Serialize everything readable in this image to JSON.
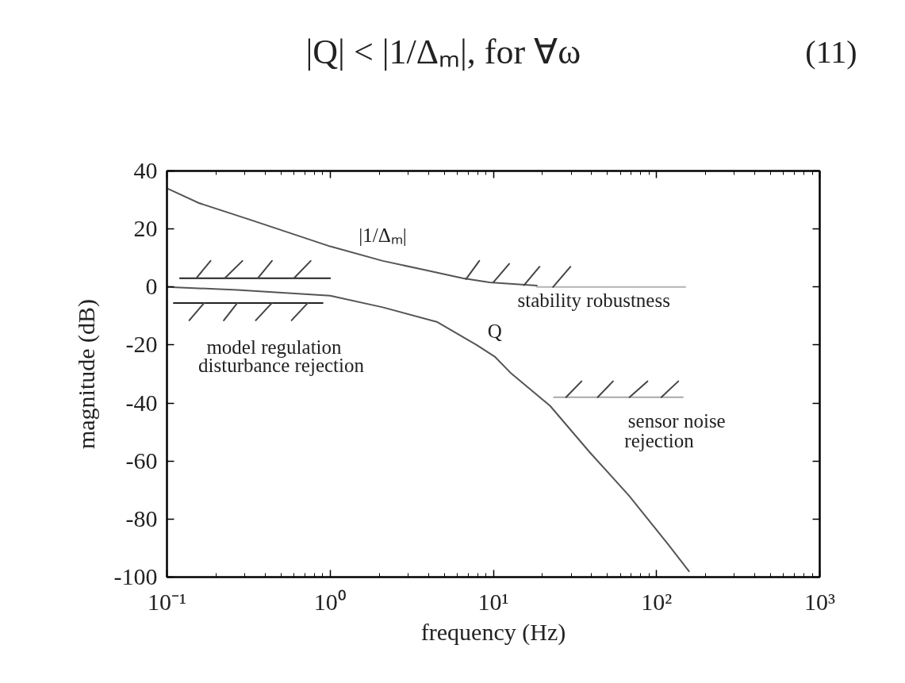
{
  "chart_data": {
    "type": "line",
    "title": "|Q| < |1/Δₘ|,   for ∀ω",
    "xlabel": "frequency (Hz)",
    "ylabel": "magnitude (dB)",
    "log": "x",
    "xlim": [
      0.1,
      1000
    ],
    "ylim": [
      -100,
      40
    ],
    "xticks": [
      {
        "value": 0.1,
        "label": "10⁻¹"
      },
      {
        "value": 1,
        "label": "10⁰"
      },
      {
        "value": 10,
        "label": "10¹"
      },
      {
        "value": 100,
        "label": "10²"
      },
      {
        "value": 1000,
        "label": "10³"
      }
    ],
    "yticks": [
      -100,
      -80,
      -60,
      -40,
      -20,
      0,
      20,
      40
    ],
    "series": [
      {
        "name": "|1/Δₘ|",
        "color": "#555555",
        "x": [
          0.1,
          0.156,
          0.33,
          1,
          2.1,
          3.7,
          6.5,
          9.5,
          18.5
        ],
        "values": [
          34,
          29,
          23,
          14,
          9,
          6,
          3,
          1.6,
          0.5
        ]
      },
      {
        "name": "Q",
        "color": "#555555",
        "x": [
          0.1,
          0.27,
          1,
          2.1,
          4.5,
          7.9,
          10.2,
          12.7,
          22.3,
          39,
          68,
          119,
          158
        ],
        "values": [
          0,
          -1,
          -3,
          -7,
          -12,
          -20,
          -24,
          -29.5,
          -41,
          -57,
          -72,
          -89,
          -98
        ]
      },
      {
        "color": "#222222",
        "x": [
          0.12,
          1
        ],
        "values": [
          3,
          3
        ]
      },
      {
        "color": "#222222",
        "x": [
          0.11,
          0.9
        ],
        "values": [
          -5.5,
          -5.5
        ]
      },
      {
        "color": "#b4b4b4",
        "x": [
          18.5,
          150
        ],
        "values": [
          0,
          0
        ]
      },
      {
        "color": "#a8a8a8",
        "x": [
          23.5,
          145
        ],
        "values": [
          -38,
          -38
        ]
      },
      {
        "color": "#444444",
        "x": [
          0.151,
          0.185,
          null,
          0.226,
          0.29,
          null,
          0.36,
          0.44,
          null,
          0.6,
          0.76,
          null,
          0.137,
          0.169,
          null,
          0.223,
          0.27,
          null,
          0.35,
          0.44,
          null,
          0.58,
          0.73,
          null,
          6.8,
          8.2,
          null,
          10,
          12.5,
          null,
          15.4,
          19.2,
          null,
          23.2,
          29.7,
          null,
          27.9,
          34.7,
          null,
          43.6,
          54.1,
          null,
          68.3,
          88,
          null,
          107,
          136
        ],
        "values": [
          3,
          9,
          null,
          3,
          9,
          null,
          3,
          9,
          null,
          3,
          9,
          null,
          -11.5,
          -5.5,
          null,
          -11.5,
          -5.5,
          null,
          -11.5,
          -5.5,
          null,
          -11.5,
          -5.5,
          null,
          2.7,
          9,
          null,
          1.6,
          8,
          null,
          0.6,
          7,
          null,
          0,
          7,
          null,
          -38,
          -32.5,
          null,
          -38,
          -32.5,
          null,
          -38,
          -32.5,
          null,
          -38,
          -32.5
        ]
      }
    ],
    "annotations": [
      "stability robustness",
      "model regulation",
      "disturbance rejection",
      "sensor noise",
      "rejection",
      "(11)"
    ]
  }
}
